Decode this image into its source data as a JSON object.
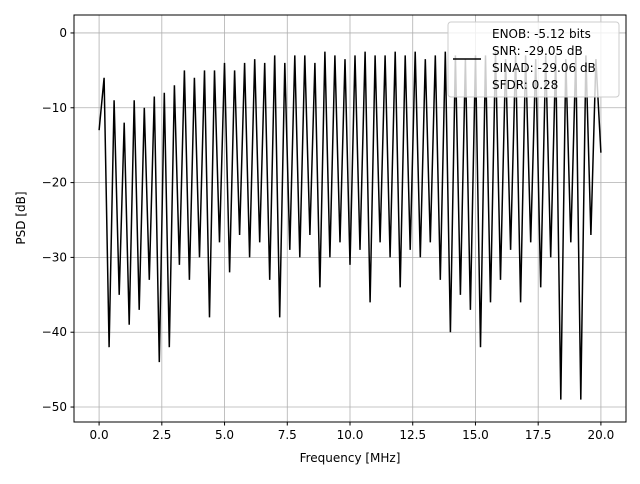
{
  "chart_data": {
    "type": "line",
    "title": "",
    "xlabel": "Frequency [MHz]",
    "ylabel": "PSD [dB]",
    "xlim": [
      -1.0,
      21.0
    ],
    "ylim": [
      -52.0,
      2.4
    ],
    "grid": true,
    "xticks": [
      0,
      2.5,
      5,
      7.5,
      10,
      12.5,
      15,
      17.5,
      20
    ],
    "xtick_labels": [
      "0.0",
      "2.5",
      "5.0",
      "7.5",
      "10.0",
      "12.5",
      "15.0",
      "17.5",
      "20.0"
    ],
    "yticks": [
      0,
      -10,
      -20,
      -30,
      -40,
      -50
    ],
    "ytick_labels": [
      "0",
      "−10",
      "−20",
      "−30",
      "−40",
      "−50"
    ],
    "series": [
      {
        "color": "#000000",
        "x_range": [
          0,
          20
        ],
        "y": [
          -13,
          -6,
          -42,
          -9,
          -35,
          -12,
          -39,
          -9,
          -37,
          -10,
          -33,
          -8.5,
          -44,
          -8,
          -42,
          -7,
          -31,
          -5,
          -33,
          -6,
          -30,
          -5,
          -38,
          -5,
          -28,
          -4,
          -32,
          -5,
          -27,
          -4,
          -30,
          -3.5,
          -28,
          -4,
          -33,
          -3,
          -38,
          -4,
          -29,
          -3,
          -30,
          -3,
          -27,
          -4,
          -34,
          -2.5,
          -30,
          -3,
          -28,
          -3.5,
          -31,
          -3,
          -29,
          -2.5,
          -36,
          -3,
          -28,
          -3,
          -30,
          -2.5,
          -34,
          -3,
          -29,
          -2.5,
          -30,
          -3.5,
          -28,
          -3,
          -33,
          -2.5,
          -40,
          -3,
          -35,
          -3.5,
          -37,
          -3,
          -42,
          -3,
          -36,
          -2.5,
          -33,
          -3.5,
          -29,
          -3,
          -36,
          -3,
          -28,
          -3.5,
          -34,
          -3,
          -30,
          -3,
          -49,
          -3.5,
          -28,
          -3,
          -49,
          -3,
          -27,
          -3.5,
          -16
        ]
      }
    ],
    "legend": {
      "placement": "upper right",
      "entries": [
        "ENOB: -5.12 bits",
        "SNR: -29.05 dB",
        "SINAD: -29.06 dB",
        "SFDR: 0.28"
      ]
    }
  }
}
